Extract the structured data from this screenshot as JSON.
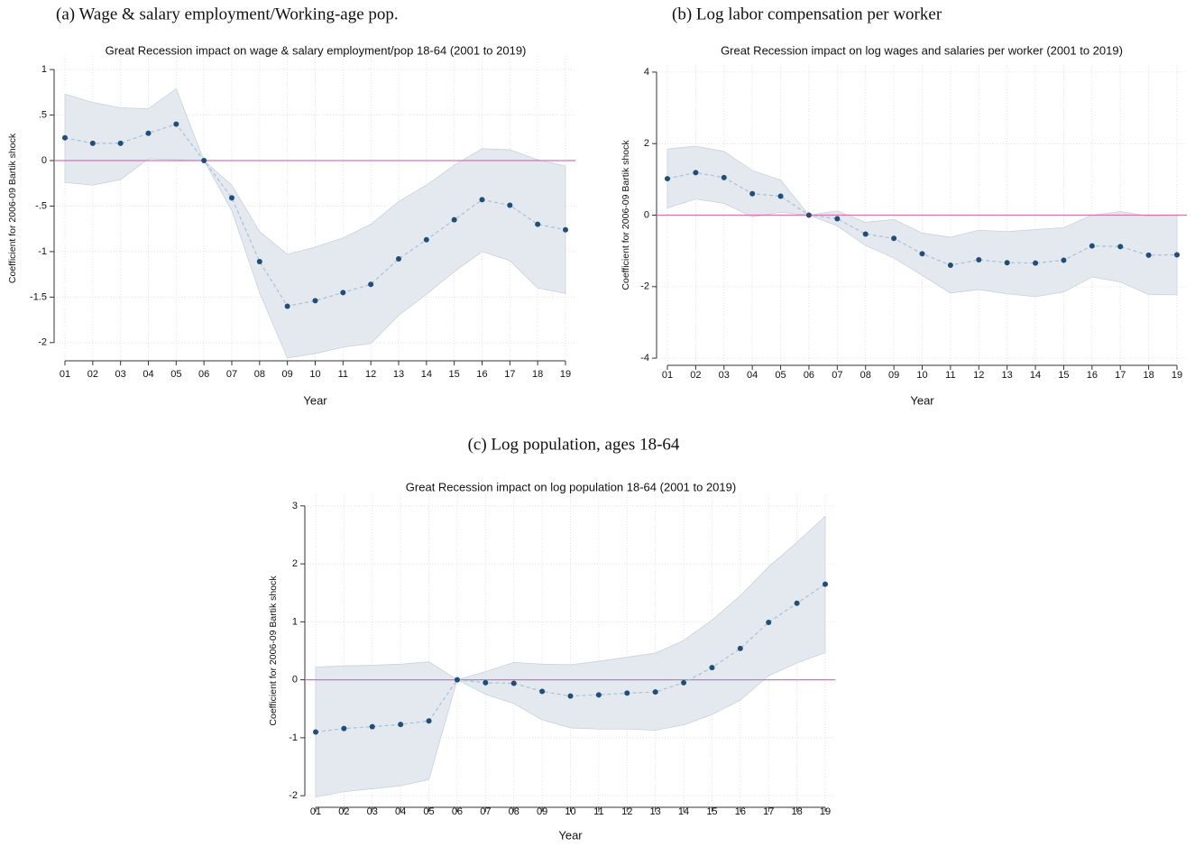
{
  "chart_data": [
    {
      "type": "line",
      "caption": "(a) Wage & salary employment/Working-age pop.",
      "title": "Great Recession impact on wage & salary employment/pop 18-64 (2001 to 2019)",
      "xlabel": "Year",
      "ylabel": "Coefficient for 2006-09 Bartik shock",
      "categories": [
        "01",
        "02",
        "03",
        "04",
        "05",
        "06",
        "07",
        "08",
        "09",
        "10",
        "11",
        "12",
        "13",
        "14",
        "15",
        "16",
        "17",
        "18",
        "19"
      ],
      "values": [
        0.25,
        0.19,
        0.19,
        0.3,
        0.4,
        0,
        -0.41,
        -1.11,
        -1.6,
        -1.54,
        -1.45,
        -1.36,
        -1.08,
        -0.87,
        -0.65,
        -0.43,
        -0.49,
        -0.7,
        -0.76
      ],
      "ci_upper": [
        0.73,
        0.64,
        0.58,
        0.57,
        0.79,
        0,
        -0.27,
        -0.78,
        -1.03,
        -0.95,
        -0.85,
        -0.7,
        -0.45,
        -0.27,
        -0.05,
        0.13,
        0.12,
        0.01,
        -0.06
      ],
      "ci_lower": [
        -0.24,
        -0.27,
        -0.21,
        0.02,
        0.01,
        0,
        -0.55,
        -1.45,
        -2.17,
        -2.12,
        -2.05,
        -2.01,
        -1.7,
        -1.47,
        -1.22,
        -1.0,
        -1.1,
        -1.4,
        -1.46
      ],
      "ylim": [
        -2.2,
        1.15
      ],
      "yticks": [
        {
          "value": -2,
          "label": "-2"
        },
        {
          "value": -1.5,
          "label": "-1.5"
        },
        -1,
        {
          "value": -0.5,
          "label": "-.5"
        },
        0,
        {
          "value": 0.5,
          "label": ".5"
        },
        1
      ],
      "reference_line": 0,
      "grid": true,
      "color": "#1f4e79",
      "line_color": "#a9c0d6",
      "band_color": "#e4e9ef",
      "reference_color": "#d374b6"
    },
    {
      "type": "line",
      "caption": "(b) Log labor compensation per worker",
      "title": "Great Recession impact on log wages and salaries per worker (2001 to 2019)",
      "xlabel": "Year",
      "ylabel": "Coefficient for 2006-09 Bartik shock",
      "categories": [
        "01",
        "02",
        "03",
        "04",
        "05",
        "06",
        "07",
        "08",
        "09",
        "10",
        "11",
        "12",
        "13",
        "14",
        "15",
        "16",
        "17",
        "18",
        "19"
      ],
      "values": [
        1.02,
        1.19,
        1.05,
        0.6,
        0.53,
        0,
        -0.1,
        -0.53,
        -0.65,
        -1.08,
        -1.4,
        -1.25,
        -1.33,
        -1.34,
        -1.26,
        -0.86,
        -0.88,
        -1.12,
        -1.11
      ],
      "ci_upper": [
        1.85,
        1.93,
        1.78,
        1.25,
        0.98,
        0,
        0.12,
        -0.2,
        -0.12,
        -0.5,
        -0.62,
        -0.42,
        -0.46,
        -0.4,
        -0.35,
        0.0,
        0.1,
        -0.03,
        0.0
      ],
      "ci_lower": [
        0.2,
        0.45,
        0.33,
        -0.05,
        0.08,
        0,
        -0.3,
        -0.85,
        -1.2,
        -1.68,
        -2.18,
        -2.08,
        -2.2,
        -2.28,
        -2.15,
        -1.73,
        -1.87,
        -2.22,
        -2.23
      ],
      "ylim": [
        -4.2,
        4.2
      ],
      "yticks": [
        -4,
        -2,
        0,
        2,
        4
      ],
      "reference_line": 0,
      "grid": true,
      "color": "#1f4e79",
      "line_color": "#a9c0d6",
      "band_color": "#e4e9ef",
      "reference_color": "#d374b6"
    },
    {
      "type": "line",
      "caption": "(c) Log population, ages 18-64",
      "title": "Great Recession impact on log population 18-64 (2001 to 2019)",
      "xlabel": "Year",
      "ylabel": "Coefficient for 2006-09 Bartik shock",
      "categories": [
        "01",
        "02",
        "03",
        "04",
        "05",
        "06",
        "07",
        "08",
        "09",
        "10",
        "11",
        "12",
        "13",
        "14",
        "15",
        "16",
        "17",
        "18",
        "19"
      ],
      "values": [
        -0.9,
        -0.84,
        -0.81,
        -0.77,
        -0.71,
        0,
        -0.05,
        -0.06,
        -0.2,
        -0.28,
        -0.26,
        -0.23,
        -0.21,
        -0.05,
        0.21,
        0.54,
        0.99,
        1.32,
        1.65
      ],
      "ci_upper": [
        0.22,
        0.24,
        0.25,
        0.27,
        0.31,
        0,
        0.14,
        0.3,
        0.27,
        0.26,
        0.32,
        0.39,
        0.46,
        0.68,
        1.03,
        1.45,
        1.95,
        2.37,
        2.82
      ],
      "ci_lower": [
        -2.02,
        -1.93,
        -1.88,
        -1.83,
        -1.72,
        0,
        -0.25,
        -0.41,
        -0.69,
        -0.83,
        -0.85,
        -0.85,
        -0.87,
        -0.78,
        -0.6,
        -0.35,
        0.07,
        0.29,
        0.47
      ],
      "ylim": [
        -2.2,
        3.2
      ],
      "yticks": [
        -2,
        -1,
        0,
        1,
        2,
        3
      ],
      "reference_line": 0,
      "grid": true,
      "color": "#1f4e79",
      "line_color": "#a9c0d6",
      "band_color": "#e4e9ef",
      "reference_color": "#d374b6"
    }
  ]
}
